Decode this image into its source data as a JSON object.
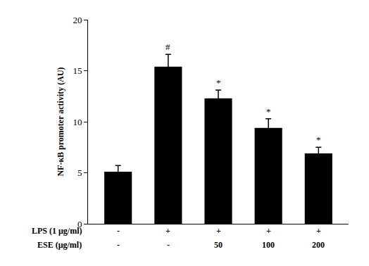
{
  "chart_data": {
    "type": "bar",
    "y_label": "NF-κB promoter activity (AU)",
    "categories": [
      null,
      null,
      null,
      null,
      null
    ],
    "values": [
      5.1,
      15.4,
      12.3,
      9.4,
      6.9
    ],
    "errors": [
      0.6,
      1.2,
      0.8,
      0.9,
      0.6
    ],
    "significance": [
      null,
      "#",
      "*",
      "*",
      "*"
    ],
    "condition_rows": [
      {
        "label": "LPS (1 μg/ml)",
        "values": [
          "-",
          "+",
          "+",
          "+",
          "+"
        ]
      },
      {
        "label": "ESE (μg/ml)",
        "values": [
          "-",
          "-",
          "50",
          "100",
          "200"
        ]
      }
    ],
    "color": "#000000",
    "ylim": [
      0,
      20
    ],
    "yticks": [
      0,
      5,
      10,
      15,
      20
    ],
    "grid": false,
    "tick_labels": "y"
  }
}
